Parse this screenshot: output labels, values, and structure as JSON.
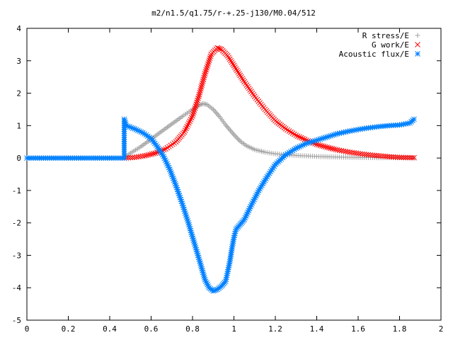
{
  "chart_data": {
    "type": "scatter",
    "title": "m2/n1.5/q1.75/r-+.25-j130/M0.04/512",
    "xlabel": "",
    "ylabel": "",
    "xlim": [
      0,
      2
    ],
    "ylim": [
      -5,
      4
    ],
    "x_ticks": [
      "0",
      "0.2",
      "0.4",
      "0.6",
      "0.8",
      "1",
      "1.2",
      "1.4",
      "1.6",
      "1.8",
      "2"
    ],
    "x_tick_values": [
      0,
      0.2,
      0.4,
      0.6,
      0.8,
      1.0,
      1.2,
      1.4,
      1.6,
      1.8,
      2.0
    ],
    "y_ticks": [
      "4",
      "3",
      "2",
      "1",
      "0",
      "-1",
      "-2",
      "-3",
      "-4",
      "-5"
    ],
    "y_tick_values": [
      4,
      3,
      2,
      1,
      0,
      -1,
      -2,
      -3,
      -4,
      -5
    ],
    "grid": false,
    "legend_position": "top-right",
    "series": [
      {
        "name": "R stress/E",
        "marker": "plus",
        "color": "#a0a0a0",
        "points": [
          [
            0.47,
            0.0
          ],
          [
            0.5,
            0.15
          ],
          [
            0.55,
            0.35
          ],
          [
            0.6,
            0.58
          ],
          [
            0.65,
            0.82
          ],
          [
            0.7,
            1.05
          ],
          [
            0.75,
            1.28
          ],
          [
            0.8,
            1.5
          ],
          [
            0.83,
            1.62
          ],
          [
            0.85,
            1.68
          ],
          [
            0.87,
            1.65
          ],
          [
            0.9,
            1.5
          ],
          [
            0.93,
            1.28
          ],
          [
            0.96,
            1.02
          ],
          [
            1.0,
            0.72
          ],
          [
            1.03,
            0.52
          ],
          [
            1.06,
            0.38
          ],
          [
            1.1,
            0.26
          ],
          [
            1.15,
            0.18
          ],
          [
            1.2,
            0.13
          ],
          [
            1.3,
            0.08
          ],
          [
            1.4,
            0.05
          ],
          [
            1.5,
            0.03
          ],
          [
            1.6,
            0.02
          ],
          [
            1.7,
            0.01
          ],
          [
            1.8,
            0.01
          ],
          [
            1.87,
            0.0
          ]
        ]
      },
      {
        "name": "G work/E",
        "marker": "cross",
        "color": "#ff0000",
        "points": [
          [
            0.47,
            0.0
          ],
          [
            0.52,
            0.02
          ],
          [
            0.57,
            0.07
          ],
          [
            0.62,
            0.15
          ],
          [
            0.67,
            0.28
          ],
          [
            0.72,
            0.5
          ],
          [
            0.76,
            0.8
          ],
          [
            0.8,
            1.3
          ],
          [
            0.83,
            1.9
          ],
          [
            0.86,
            2.6
          ],
          [
            0.89,
            3.2
          ],
          [
            0.92,
            3.4
          ],
          [
            0.94,
            3.35
          ],
          [
            0.97,
            3.15
          ],
          [
            1.0,
            2.85
          ],
          [
            1.05,
            2.35
          ],
          [
            1.1,
            1.9
          ],
          [
            1.15,
            1.5
          ],
          [
            1.2,
            1.15
          ],
          [
            1.25,
            0.9
          ],
          [
            1.3,
            0.7
          ],
          [
            1.35,
            0.55
          ],
          [
            1.4,
            0.42
          ],
          [
            1.45,
            0.33
          ],
          [
            1.5,
            0.25
          ],
          [
            1.55,
            0.19
          ],
          [
            1.6,
            0.14
          ],
          [
            1.65,
            0.1
          ],
          [
            1.7,
            0.07
          ],
          [
            1.75,
            0.04
          ],
          [
            1.8,
            0.02
          ],
          [
            1.87,
            0.01
          ]
        ]
      },
      {
        "name": "Acoustic flux/E",
        "marker": "star",
        "color": "#0080ff",
        "points": [
          [
            0.0,
            0.0
          ],
          [
            0.1,
            0.0
          ],
          [
            0.2,
            0.0
          ],
          [
            0.3,
            0.0
          ],
          [
            0.4,
            0.0
          ],
          [
            0.47,
            0.0
          ],
          [
            0.47,
            1.2
          ],
          [
            0.48,
            1.0
          ],
          [
            0.52,
            0.9
          ],
          [
            0.56,
            0.78
          ],
          [
            0.6,
            0.6
          ],
          [
            0.63,
            0.35
          ],
          [
            0.66,
            0.05
          ],
          [
            0.69,
            -0.35
          ],
          [
            0.72,
            -0.85
          ],
          [
            0.75,
            -1.4
          ],
          [
            0.78,
            -2.0
          ],
          [
            0.81,
            -2.65
          ],
          [
            0.84,
            -3.3
          ],
          [
            0.86,
            -3.75
          ],
          [
            0.88,
            -4.0
          ],
          [
            0.9,
            -4.1
          ],
          [
            0.92,
            -4.05
          ],
          [
            0.94,
            -3.95
          ],
          [
            0.96,
            -3.8
          ],
          [
            0.98,
            -3.2
          ],
          [
            0.99,
            -2.8
          ],
          [
            1.0,
            -2.45
          ],
          [
            1.01,
            -2.2
          ],
          [
            1.03,
            -2.05
          ],
          [
            1.05,
            -1.9
          ],
          [
            1.08,
            -1.5
          ],
          [
            1.12,
            -1.0
          ],
          [
            1.16,
            -0.58
          ],
          [
            1.2,
            -0.2
          ],
          [
            1.25,
            0.1
          ],
          [
            1.3,
            0.3
          ],
          [
            1.35,
            0.45
          ],
          [
            1.4,
            0.55
          ],
          [
            1.45,
            0.65
          ],
          [
            1.5,
            0.75
          ],
          [
            1.55,
            0.82
          ],
          [
            1.6,
            0.88
          ],
          [
            1.65,
            0.93
          ],
          [
            1.7,
            0.97
          ],
          [
            1.75,
            1.0
          ],
          [
            1.8,
            1.02
          ],
          [
            1.85,
            1.08
          ],
          [
            1.87,
            1.2
          ]
        ]
      }
    ]
  }
}
